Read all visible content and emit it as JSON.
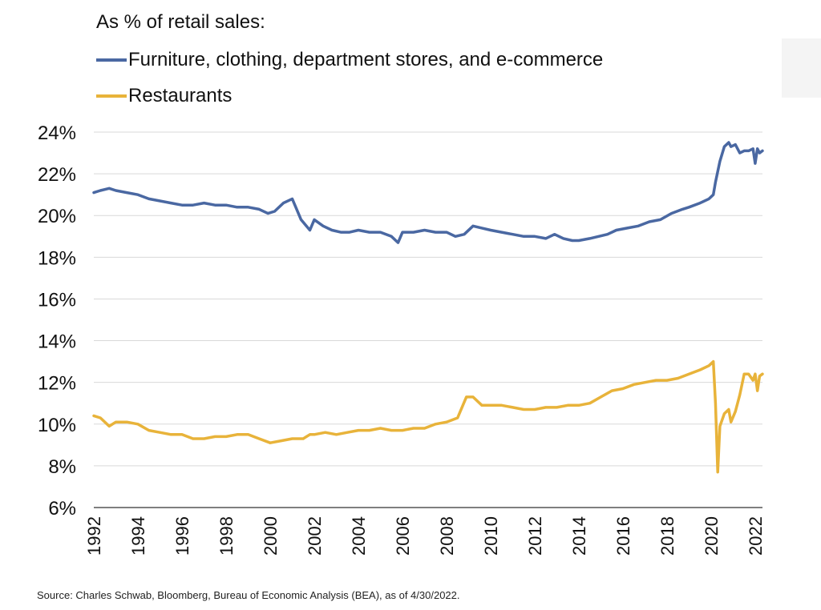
{
  "colors": {
    "blue": "#4a68a2",
    "gold": "#e8b33a",
    "grid": "#d9d9d9",
    "axis": "#7f7f7f"
  },
  "source": "Source: Charles Schwab, Bloomberg, Bureau of Economic Analysis (BEA), as of 4/30/2022.",
  "chart_data": {
    "type": "line",
    "title": "",
    "legend_title": "As % of retail sales:",
    "legend_position": "top-left",
    "xlabel": "",
    "ylabel": "",
    "xlim": [
      1992.0,
      2022.33
    ],
    "ylim": [
      6,
      24
    ],
    "grid": true,
    "x_ticks": [
      "1992",
      "1994",
      "1996",
      "1998",
      "2000",
      "2002",
      "2004",
      "2006",
      "2008",
      "2010",
      "2012",
      "2014",
      "2016",
      "2018",
      "2020",
      "2022"
    ],
    "y_ticks": [
      "6%",
      "8%",
      "10%",
      "12%",
      "14%",
      "16%",
      "18%",
      "20%",
      "22%",
      "24%"
    ],
    "series": [
      {
        "name": "Furniture, clothing, department stores, and e-commerce",
        "color": "#4a68a2",
        "x": [
          1992.0,
          1992.3,
          1992.7,
          1993.0,
          1993.5,
          1994.0,
          1994.5,
          1995.0,
          1995.5,
          1996.0,
          1996.5,
          1997.0,
          1997.5,
          1998.0,
          1998.5,
          1999.0,
          1999.5,
          1999.9,
          2000.2,
          2000.6,
          2001.0,
          2001.4,
          2001.8,
          2002.0,
          2002.4,
          2002.8,
          2003.2,
          2003.6,
          2004.0,
          2004.5,
          2005.0,
          2005.5,
          2005.8,
          2006.0,
          2006.5,
          2007.0,
          2007.5,
          2008.0,
          2008.4,
          2008.8,
          2009.2,
          2009.6,
          2010.0,
          2010.5,
          2011.0,
          2011.5,
          2012.0,
          2012.5,
          2012.9,
          2013.3,
          2013.7,
          2014.0,
          2014.5,
          2014.9,
          2015.3,
          2015.7,
          2016.2,
          2016.7,
          2017.2,
          2017.7,
          2018.2,
          2018.7,
          2019.0,
          2019.5,
          2019.9,
          2020.1,
          2020.2,
          2020.4,
          2020.6,
          2020.8,
          2020.9,
          2021.1,
          2021.3,
          2021.5,
          2021.7,
          2021.9,
          2022.0,
          2022.1,
          2022.2,
          2022.33
        ],
        "values": [
          21.1,
          21.2,
          21.3,
          21.2,
          21.1,
          21.0,
          20.8,
          20.7,
          20.6,
          20.5,
          20.5,
          20.6,
          20.5,
          20.5,
          20.4,
          20.4,
          20.3,
          20.1,
          20.2,
          20.6,
          20.8,
          19.8,
          19.3,
          19.8,
          19.5,
          19.3,
          19.2,
          19.2,
          19.3,
          19.2,
          19.2,
          19.0,
          18.7,
          19.2,
          19.2,
          19.3,
          19.2,
          19.2,
          19.0,
          19.1,
          19.5,
          19.4,
          19.3,
          19.2,
          19.1,
          19.0,
          19.0,
          18.9,
          19.1,
          18.9,
          18.8,
          18.8,
          18.9,
          19.0,
          19.1,
          19.3,
          19.4,
          19.5,
          19.7,
          19.8,
          20.1,
          20.3,
          20.4,
          20.6,
          20.8,
          21.0,
          21.6,
          22.6,
          23.3,
          23.5,
          23.3,
          23.4,
          23.0,
          23.1,
          23.1,
          23.2,
          22.5,
          23.2,
          23.0,
          23.1
        ]
      },
      {
        "name": "Restaurants",
        "color": "#e8b33a",
        "x": [
          1992.0,
          1992.3,
          1992.7,
          1993.0,
          1993.5,
          1994.0,
          1994.5,
          1995.0,
          1995.5,
          1996.0,
          1996.5,
          1997.0,
          1997.5,
          1998.0,
          1998.5,
          1999.0,
          1999.5,
          2000.0,
          2000.5,
          2001.0,
          2001.5,
          2001.8,
          2002.0,
          2002.5,
          2003.0,
          2003.5,
          2004.0,
          2004.5,
          2005.0,
          2005.5,
          2006.0,
          2006.5,
          2007.0,
          2007.5,
          2008.0,
          2008.5,
          2008.9,
          2009.2,
          2009.6,
          2010.0,
          2010.5,
          2011.0,
          2011.5,
          2012.0,
          2012.5,
          2013.0,
          2013.5,
          2014.0,
          2014.5,
          2015.0,
          2015.5,
          2016.0,
          2016.5,
          2017.0,
          2017.5,
          2018.0,
          2018.5,
          2019.0,
          2019.5,
          2019.9,
          2020.1,
          2020.2,
          2020.3,
          2020.4,
          2020.6,
          2020.8,
          2020.9,
          2021.1,
          2021.3,
          2021.5,
          2021.7,
          2021.9,
          2022.0,
          2022.1,
          2022.2,
          2022.33
        ],
        "values": [
          10.4,
          10.3,
          9.9,
          10.1,
          10.1,
          10.0,
          9.7,
          9.6,
          9.5,
          9.5,
          9.3,
          9.3,
          9.4,
          9.4,
          9.5,
          9.5,
          9.3,
          9.1,
          9.2,
          9.3,
          9.3,
          9.5,
          9.5,
          9.6,
          9.5,
          9.6,
          9.7,
          9.7,
          9.8,
          9.7,
          9.7,
          9.8,
          9.8,
          10.0,
          10.1,
          10.3,
          11.3,
          11.3,
          10.9,
          10.9,
          10.9,
          10.8,
          10.7,
          10.7,
          10.8,
          10.8,
          10.9,
          10.9,
          11.0,
          11.3,
          11.6,
          11.7,
          11.9,
          12.0,
          12.1,
          12.1,
          12.2,
          12.4,
          12.6,
          12.8,
          13.0,
          11.0,
          7.7,
          9.9,
          10.5,
          10.7,
          10.1,
          10.6,
          11.4,
          12.4,
          12.4,
          12.1,
          12.4,
          11.6,
          12.3,
          12.4
        ]
      }
    ]
  }
}
